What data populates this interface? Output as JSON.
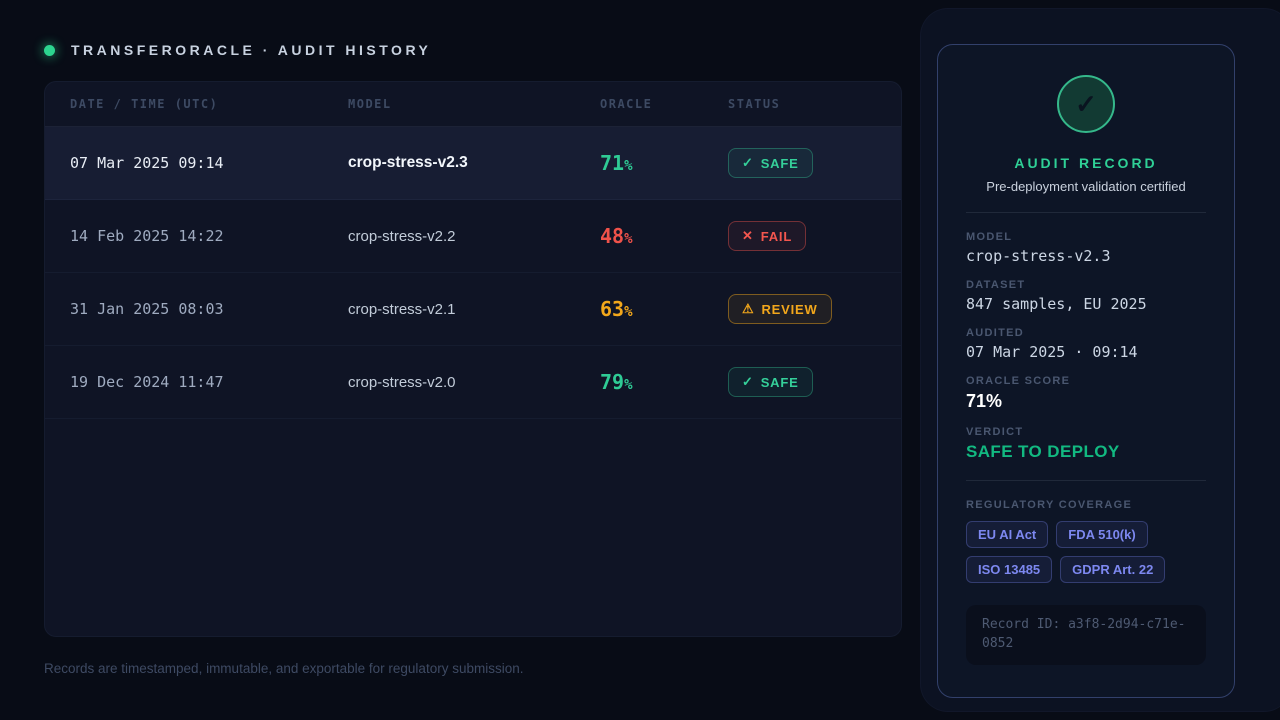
{
  "header": {
    "title": "TRANSFERORACLE · AUDIT HISTORY",
    "status_dot_color": "#2dd48f"
  },
  "table": {
    "columns": {
      "datetime": "DATE / TIME (UTC)",
      "model": "MODEL",
      "oracle": "ORACLE",
      "status": "STATUS"
    },
    "rows": [
      {
        "datetime": "07 Mar 2025 09:14",
        "model": "crop-stress-v2.3",
        "oracle_value": "71",
        "oracle_unit": "%",
        "status_label": "SAFE",
        "status_icon": "✓",
        "selected": true
      },
      {
        "datetime": "14 Feb 2025 14:22",
        "model": "crop-stress-v2.2",
        "oracle_value": "48",
        "oracle_unit": "%",
        "status_label": "FAIL",
        "status_icon": "✕",
        "selected": false
      },
      {
        "datetime": "31 Jan 2025 08:03",
        "model": "crop-stress-v2.1",
        "oracle_value": "63",
        "oracle_unit": "%",
        "status_label": "REVIEW",
        "status_icon": "⚠",
        "selected": false
      },
      {
        "datetime": "19 Dec 2024 11:47",
        "model": "crop-stress-v2.0",
        "oracle_value": "79",
        "oracle_unit": "%",
        "status_label": "SAFE",
        "status_icon": "✓",
        "selected": false
      }
    ]
  },
  "footer_note": "Records are timestamped, immutable, and exportable for regulatory submission.",
  "record_panel": {
    "check_icon": "✓",
    "title": "AUDIT RECORD",
    "subtitle": "Pre-deployment validation certified",
    "model_label": "MODEL",
    "model_value": "crop-stress-v2.3",
    "dataset_label": "DATASET",
    "dataset_value": "847 samples, EU 2025",
    "audited_label": "AUDITED",
    "audited_value": "07 Mar 2025 · 09:14",
    "score_label": "ORACLE SCORE",
    "score_value": "71%",
    "verdict_label": "VERDICT",
    "verdict_value": "SAFE TO DEPLOY",
    "regulatory_label": "REGULATORY COVERAGE",
    "chips": [
      "EU AI Act",
      "FDA 510(k)",
      "ISO 13485",
      "GDPR Art. 22"
    ],
    "record_id": "Record ID: a3f8-2d94-c71e-0852"
  },
  "colors": {
    "accent_green": "#2fd096",
    "status_safe": "#35d09a",
    "status_fail": "#f4564e",
    "status_review": "#f2a71b",
    "chip_indigo": "#7d88f0",
    "verdict_green": "#12b981"
  }
}
